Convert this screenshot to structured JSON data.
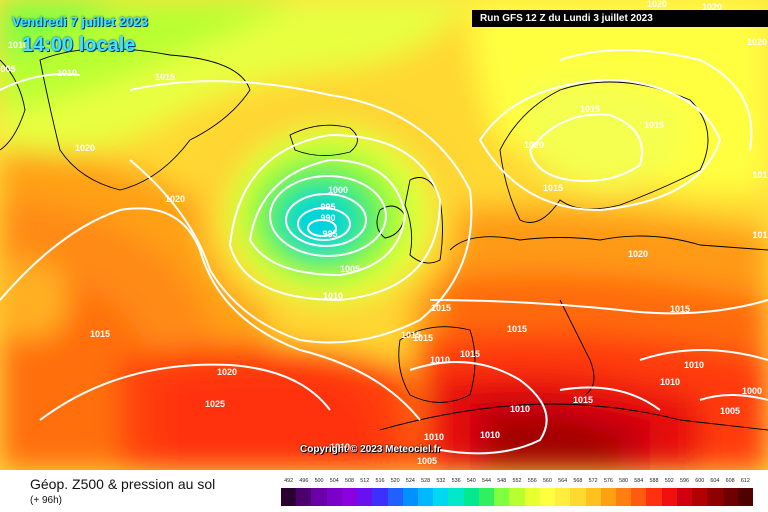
{
  "header": {
    "valid_date": "Vendredi 7 juillet 2023",
    "local_hour": "14:00 locale",
    "run_info": "Run GFS 12 Z du Lundi 3 juillet 2023"
  },
  "copyright": "Copyright © 2023 Meteociel.fr",
  "footer": {
    "title": "Géop. Z500 & pression au sol",
    "lead": "(+ 96h)"
  },
  "legend": {
    "ticks": [
      "492",
      "496",
      "500",
      "504",
      "508",
      "512",
      "516",
      "520",
      "524",
      "528",
      "532",
      "536",
      "540",
      "544",
      "548",
      "552",
      "556",
      "560",
      "564",
      "568",
      "572",
      "576",
      "580",
      "584",
      "588",
      "592",
      "596",
      "600",
      "604",
      "608",
      "612"
    ],
    "colors": [
      "#2a0030",
      "#4b006e",
      "#6a00a8",
      "#7d00c8",
      "#8c00e0",
      "#6a10f0",
      "#3c30ff",
      "#2060ff",
      "#0090ff",
      "#00b8ff",
      "#00d8f0",
      "#00e8c8",
      "#00e890",
      "#30f060",
      "#80ff40",
      "#b8ff30",
      "#e8ff30",
      "#ffff40",
      "#ffee40",
      "#ffd830",
      "#ffc020",
      "#ffa010",
      "#ff8010",
      "#ff5a10",
      "#ff3010",
      "#f01010",
      "#d00010",
      "#b00000",
      "#900000",
      "#700000",
      "#500000"
    ]
  },
  "isobar_labels": [
    {
      "text": "1020"
    },
    {
      "text": "1010"
    },
    {
      "text": "005"
    },
    {
      "text": "1010"
    },
    {
      "text": "1015"
    },
    {
      "text": "1020"
    },
    {
      "text": "1020"
    },
    {
      "text": "1000"
    },
    {
      "text": "995"
    },
    {
      "text": "990"
    },
    {
      "text": "985"
    },
    {
      "text": "1005"
    },
    {
      "text": "1010"
    },
    {
      "text": "1015"
    },
    {
      "text": "1020"
    },
    {
      "text": "1025"
    },
    {
      "text": "1015"
    },
    {
      "text": "1015"
    },
    {
      "text": "1010"
    },
    {
      "text": "1015"
    },
    {
      "text": "1015"
    },
    {
      "text": "1015"
    },
    {
      "text": "1020"
    },
    {
      "text": "1015"
    },
    {
      "text": "1015"
    },
    {
      "text": "1020"
    },
    {
      "text": "1015"
    },
    {
      "text": "1010"
    },
    {
      "text": "1010"
    },
    {
      "text": "1010"
    },
    {
      "text": "1000"
    },
    {
      "text": "1005"
    },
    {
      "text": "1015"
    },
    {
      "text": "1010"
    },
    {
      "text": "1010"
    },
    {
      "text": "1010"
    },
    {
      "text": "1005"
    },
    {
      "text": "1020"
    },
    {
      "text": "1020"
    },
    {
      "text": "101"
    },
    {
      "text": "101"
    },
    {
      "text": "1015"
    }
  ]
}
